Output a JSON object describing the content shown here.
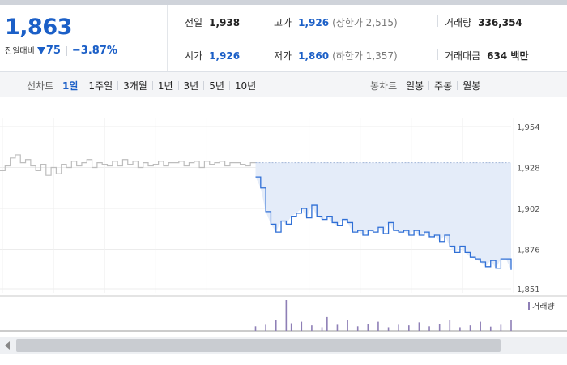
{
  "quote": {
    "price": "1,863",
    "change_label": "전일대비",
    "change_diff": "75",
    "change_rate": "−3.87%",
    "prev_close_label": "전일",
    "prev_close": "1,938",
    "open_label": "시가",
    "open": "1,926",
    "high_label": "고가",
    "high": "1,926",
    "upper_limit": "(상한가 2,515)",
    "low_label": "저가",
    "low": "1,860",
    "lower_limit": "(하한가 1,357)",
    "volume_label": "거래량",
    "volume": "336,354",
    "amount_label": "거래대금",
    "amount": "634 백만"
  },
  "controls": {
    "line_chart_label": "선차트",
    "periods": [
      "1일",
      "1주일",
      "3개월",
      "1년",
      "3년",
      "5년",
      "10년"
    ],
    "active_period": "1일",
    "candle_chart_label": "봉차트",
    "candle_types": [
      "일봉",
      "주봉",
      "월봉"
    ]
  },
  "colors": {
    "accent": "#1b5fc7",
    "price_line": "#2f6fd6",
    "prev_line": "#bdbdbd",
    "fill": "#e4ecf9",
    "volume_bar": "#8e7fb6"
  },
  "icons": {
    "scroll_left": "caret-left-icon"
  },
  "chart_data": {
    "type": "line",
    "title": "",
    "xlabel": "",
    "ylabel": "",
    "ylim": [
      1851,
      1954
    ],
    "yticks": [
      1954,
      1928,
      1902,
      1876,
      1851
    ],
    "ytick_labels": [
      "1,954",
      "1,928",
      "1,902",
      "1,876",
      "1,851"
    ],
    "reference_level": 1931,
    "x_range": [
      0,
      100
    ],
    "series": [
      {
        "name": "",
        "role": "previous",
        "x": [
          0,
          1,
          2,
          3,
          4,
          5,
          6,
          7,
          8,
          9,
          10,
          11,
          12,
          13,
          14,
          15,
          16,
          17,
          18,
          19,
          20,
          21,
          22,
          23,
          24,
          25,
          26,
          27,
          28,
          29,
          30,
          31,
          32,
          33,
          34,
          35,
          36,
          37,
          38,
          39,
          40,
          41,
          42,
          43,
          44,
          45,
          46,
          47,
          48,
          49,
          50
        ],
        "y": [
          1926,
          1929,
          1934,
          1936,
          1931,
          1933,
          1929,
          1926,
          1930,
          1923,
          1928,
          1924,
          1930,
          1928,
          1932,
          1929,
          1931,
          1933,
          1928,
          1931,
          1930,
          1929,
          1932,
          1929,
          1933,
          1930,
          1932,
          1928,
          1931,
          1929,
          1930,
          1932,
          1929,
          1931,
          1931,
          1932,
          1929,
          1931,
          1932,
          1928,
          1932,
          1930,
          1931,
          1932,
          1929,
          1931,
          1931,
          1930,
          1929,
          1931,
          1931
        ]
      },
      {
        "name": "",
        "role": "today",
        "x": [
          50,
          51,
          52,
          53,
          54,
          55,
          56,
          57,
          58,
          59,
          60,
          61,
          62,
          63,
          64,
          65,
          66,
          67,
          68,
          69,
          70,
          71,
          72,
          73,
          74,
          75,
          76,
          77,
          78,
          79,
          80,
          81,
          82,
          83,
          84,
          85,
          86,
          87,
          88,
          89,
          90,
          91,
          92,
          93,
          94,
          95,
          96,
          97,
          98,
          99,
          100
        ],
        "y": [
          1922,
          1915,
          1900,
          1892,
          1887,
          1894,
          1892,
          1897,
          1899,
          1902,
          1896,
          1904,
          1897,
          1895,
          1897,
          1893,
          1891,
          1895,
          1893,
          1887,
          1888,
          1885,
          1888,
          1887,
          1890,
          1886,
          1893,
          1888,
          1887,
          1888,
          1885,
          1888,
          1885,
          1887,
          1884,
          1885,
          1881,
          1885,
          1878,
          1874,
          1878,
          1874,
          1871,
          1870,
          1868,
          1865,
          1869,
          1864,
          1870,
          1870,
          1863
        ]
      }
    ],
    "volume_series": {
      "name": "거래량",
      "x": [
        50,
        52,
        54,
        56,
        57,
        59,
        61,
        63,
        64,
        66,
        68,
        70,
        72,
        74,
        76,
        78,
        80,
        82,
        84,
        86,
        88,
        90,
        92,
        94,
        96,
        98,
        100
      ],
      "values": [
        0.15,
        0.2,
        0.35,
        1.0,
        0.25,
        0.3,
        0.18,
        0.12,
        0.45,
        0.2,
        0.35,
        0.15,
        0.22,
        0.3,
        0.12,
        0.2,
        0.18,
        0.28,
        0.15,
        0.22,
        0.35,
        0.12,
        0.18,
        0.3,
        0.14,
        0.2,
        0.35
      ]
    }
  }
}
